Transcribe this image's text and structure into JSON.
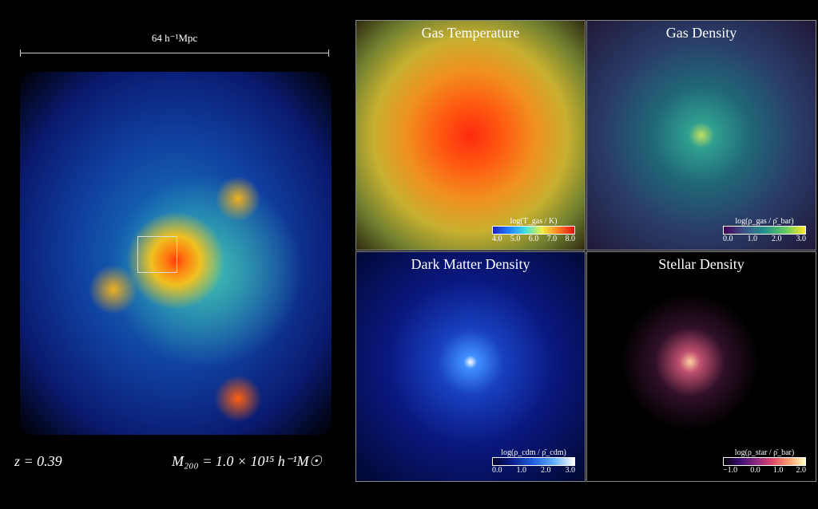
{
  "scale_bar": "64 h⁻¹Mpc",
  "redshift": "z = 0.39",
  "mass": "M₂₀₀ = 1.0 × 10¹⁵ h⁻¹M☉",
  "panels": [
    {
      "title": "Gas Temperature",
      "colorbar": {
        "label": "log(T_gas / K)",
        "ticks": [
          "4.0",
          "5.0",
          "6.0",
          "7.0",
          "8.0"
        ]
      }
    },
    {
      "title": "Gas Density",
      "colorbar": {
        "label": "log(ρ_gas / ρ̄_bar)",
        "ticks": [
          "0.0",
          "1.0",
          "2.0",
          "3.0"
        ]
      }
    },
    {
      "title": "Dark Matter Density",
      "colorbar": {
        "label": "log(ρ_cdm / ρ̄_cdm)",
        "ticks": [
          "0.0",
          "1.0",
          "2.0",
          "3.0"
        ]
      }
    },
    {
      "title": "Stellar Density",
      "colorbar": {
        "label": "log(ρ_star / ρ̄_bar)",
        "ticks": [
          "−1.0",
          "0.0",
          "1.0",
          "2.0"
        ]
      }
    }
  ]
}
